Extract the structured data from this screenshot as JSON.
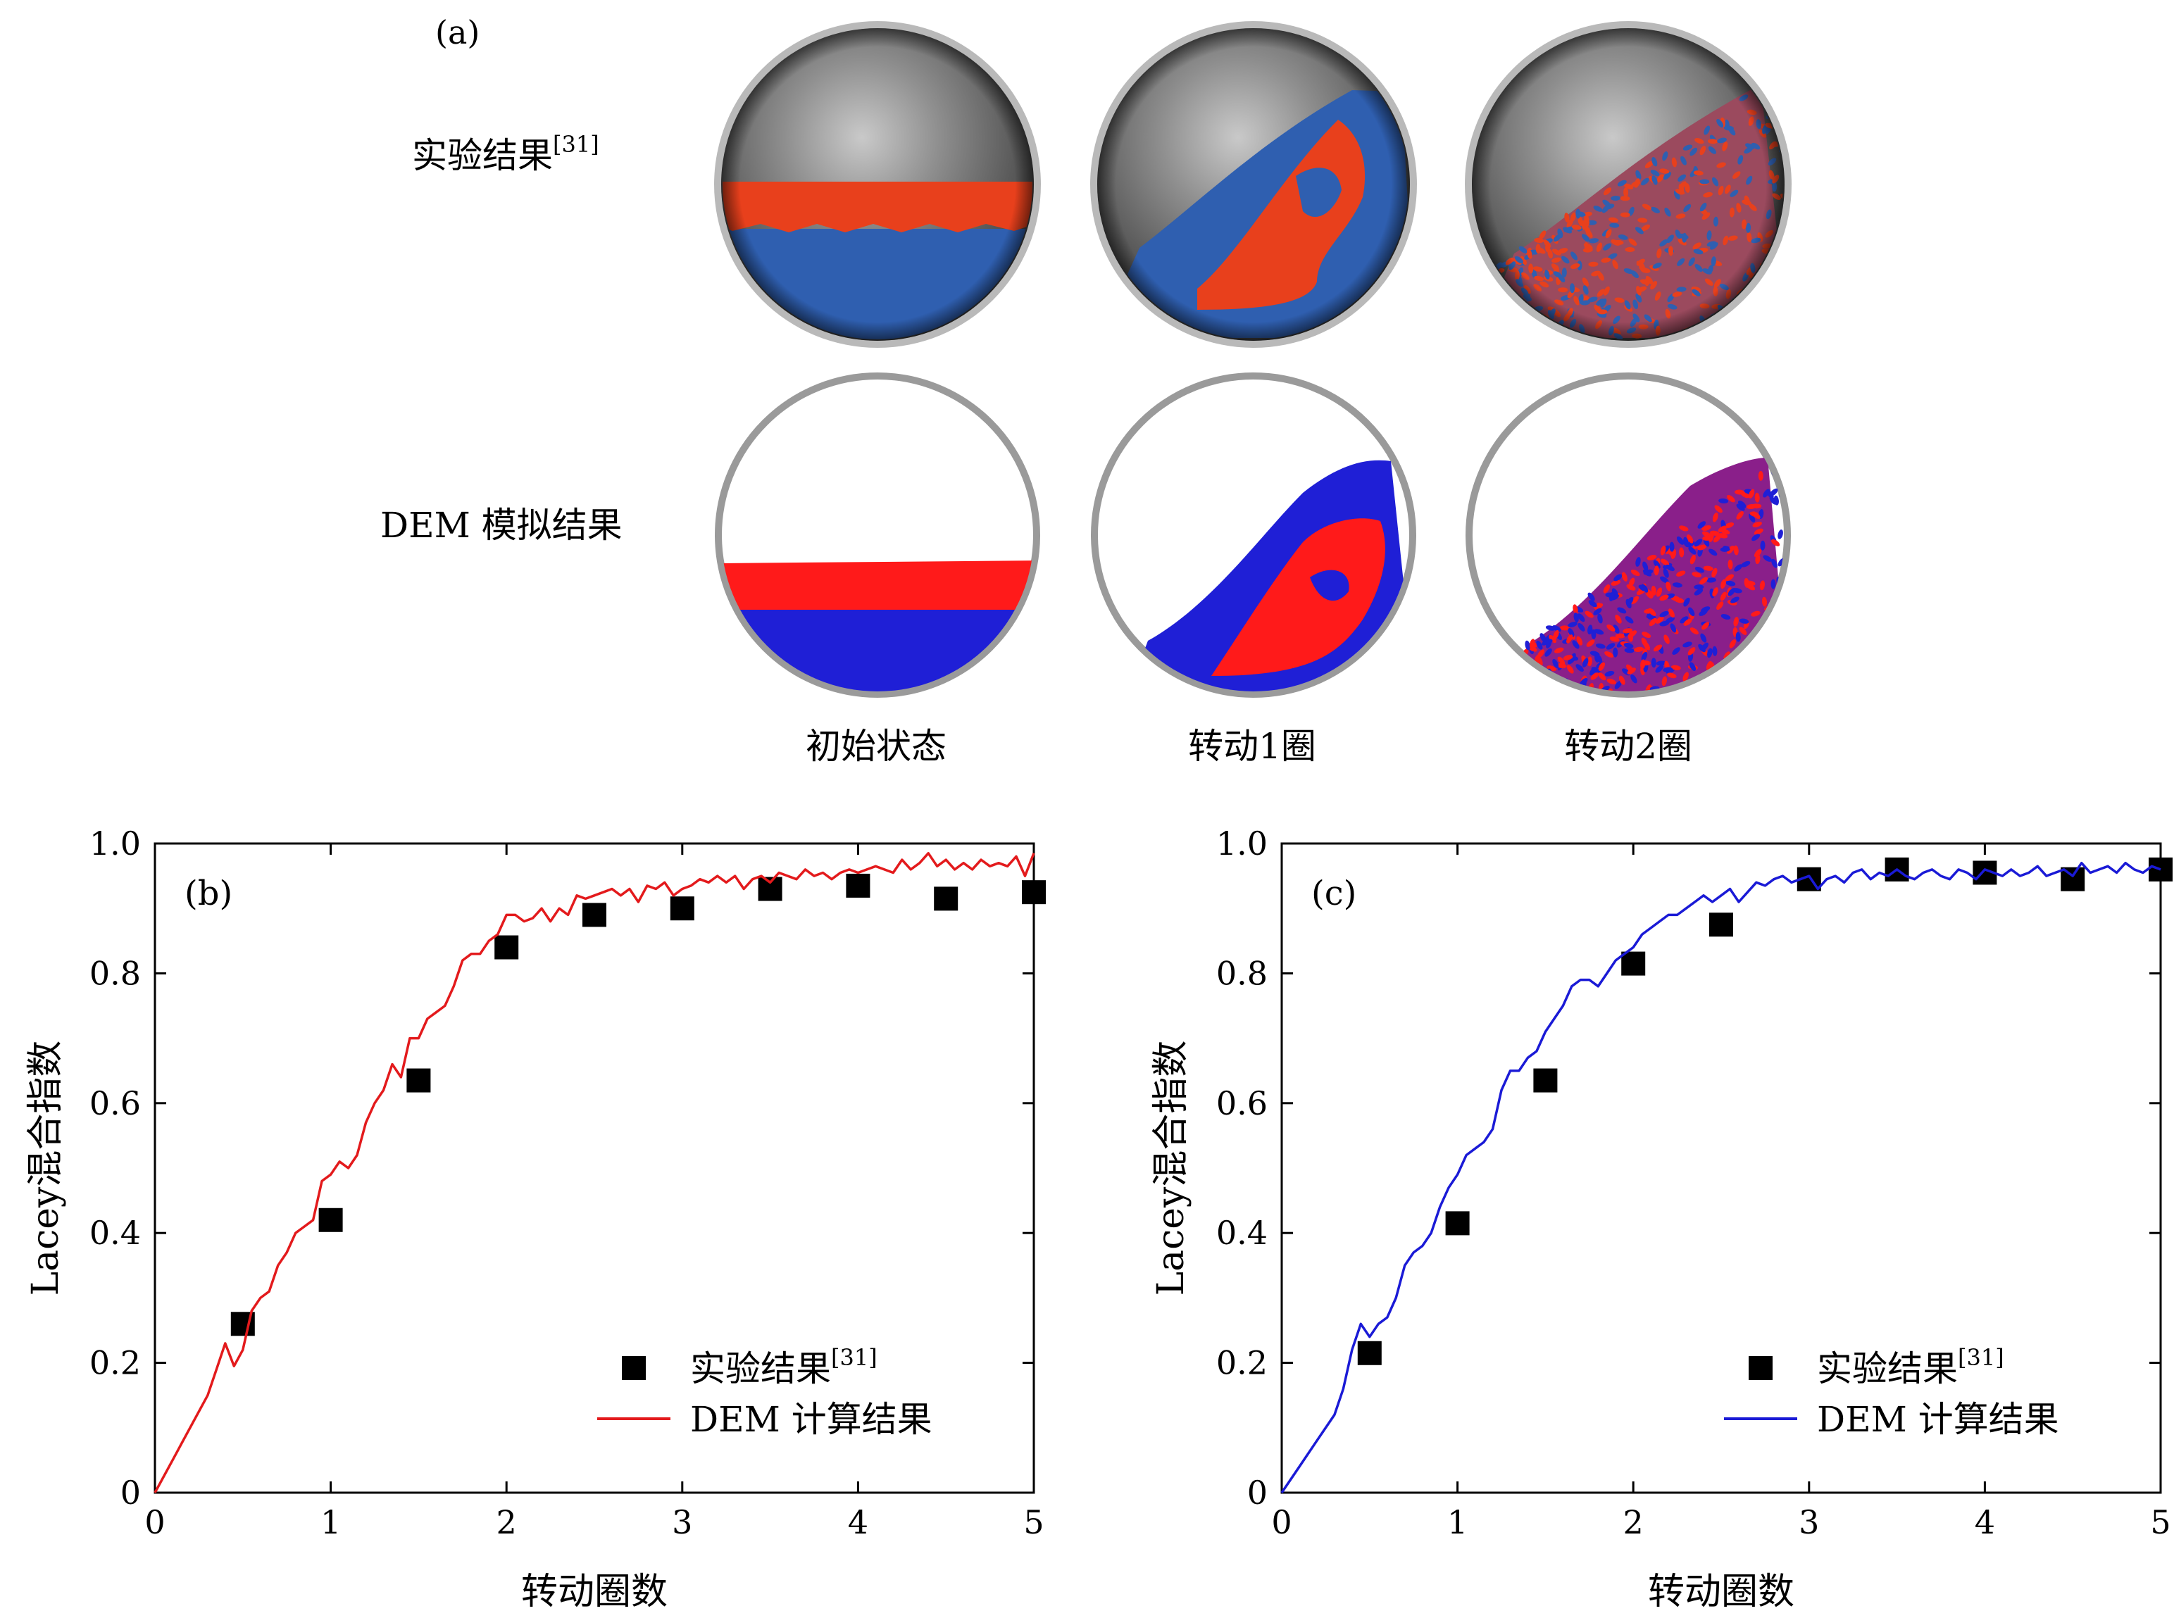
{
  "panel_a": {
    "label": "(a)",
    "row_experiment": "实验结果",
    "row_experiment_ref": "[31]",
    "row_dem": "DEM 模拟结果",
    "columns": [
      "初始状态",
      "转动1圈",
      "转动2圈"
    ],
    "colors": {
      "red": "#e8401c",
      "blue": "#2f5fb0",
      "sim_red": "#ff1a1a",
      "sim_blue": "#1f1fd6"
    }
  },
  "chart_data": [
    {
      "type": "line",
      "panel_label": "(b)",
      "xlabel": "转动圈数",
      "ylabel": "Lacey混合指数",
      "xlim": [
        0,
        5
      ],
      "ylim": [
        0,
        1.0
      ],
      "xticks": [
        "0",
        "1",
        "2",
        "3",
        "4",
        "5"
      ],
      "yticks": [
        "0",
        "0.2",
        "0.4",
        "0.6",
        "0.8",
        "1.0"
      ],
      "legend_position": "bottom-right",
      "series": [
        {
          "name": "实验结果",
          "ref": "[31]",
          "kind": "scatter",
          "marker": "square",
          "color": "#000000",
          "x": [
            0.5,
            1.0,
            1.5,
            2.0,
            2.5,
            3.0,
            3.5,
            4.0,
            4.5,
            5.0
          ],
          "y": [
            0.26,
            0.42,
            0.635,
            0.84,
            0.89,
            0.9,
            0.93,
            0.935,
            0.915,
            0.925
          ]
        },
        {
          "name": "DEM 计算结果",
          "kind": "line",
          "color": "#e31a1c",
          "x": [
            0.0,
            0.1,
            0.2,
            0.3,
            0.35,
            0.4,
            0.45,
            0.5,
            0.55,
            0.6,
            0.65,
            0.7,
            0.75,
            0.8,
            0.85,
            0.9,
            0.95,
            1.0,
            1.05,
            1.1,
            1.15,
            1.2,
            1.25,
            1.3,
            1.35,
            1.4,
            1.45,
            1.5,
            1.55,
            1.6,
            1.65,
            1.7,
            1.75,
            1.8,
            1.85,
            1.9,
            1.95,
            2.0,
            2.05,
            2.1,
            2.15,
            2.2,
            2.25,
            2.3,
            2.35,
            2.4,
            2.45,
            2.5,
            2.55,
            2.6,
            2.65,
            2.7,
            2.75,
            2.8,
            2.85,
            2.9,
            2.95,
            3.0,
            3.05,
            3.1,
            3.15,
            3.2,
            3.25,
            3.3,
            3.35,
            3.4,
            3.45,
            3.5,
            3.55,
            3.6,
            3.65,
            3.7,
            3.75,
            3.8,
            3.85,
            3.9,
            3.95,
            4.0,
            4.05,
            4.1,
            4.15,
            4.2,
            4.25,
            4.3,
            4.35,
            4.4,
            4.45,
            4.5,
            4.55,
            4.6,
            4.65,
            4.7,
            4.75,
            4.8,
            4.85,
            4.9,
            4.95,
            5.0
          ],
          "y": [
            0.0,
            0.05,
            0.1,
            0.15,
            0.19,
            0.23,
            0.195,
            0.22,
            0.28,
            0.3,
            0.31,
            0.35,
            0.37,
            0.4,
            0.41,
            0.42,
            0.48,
            0.49,
            0.51,
            0.5,
            0.52,
            0.57,
            0.6,
            0.62,
            0.66,
            0.64,
            0.7,
            0.7,
            0.73,
            0.74,
            0.75,
            0.78,
            0.82,
            0.83,
            0.83,
            0.85,
            0.86,
            0.89,
            0.89,
            0.88,
            0.885,
            0.9,
            0.88,
            0.9,
            0.89,
            0.92,
            0.915,
            0.92,
            0.925,
            0.93,
            0.92,
            0.93,
            0.91,
            0.935,
            0.93,
            0.94,
            0.92,
            0.93,
            0.935,
            0.945,
            0.94,
            0.95,
            0.94,
            0.95,
            0.93,
            0.945,
            0.95,
            0.94,
            0.955,
            0.95,
            0.945,
            0.96,
            0.95,
            0.955,
            0.945,
            0.955,
            0.96,
            0.955,
            0.96,
            0.965,
            0.96,
            0.955,
            0.975,
            0.96,
            0.97,
            0.985,
            0.965,
            0.975,
            0.96,
            0.97,
            0.96,
            0.975,
            0.965,
            0.97,
            0.965,
            0.98,
            0.95,
            0.985
          ]
        }
      ]
    },
    {
      "type": "line",
      "panel_label": "(c)",
      "xlabel": "转动圈数",
      "ylabel": "Lacey混合指数",
      "xlim": [
        0,
        5
      ],
      "ylim": [
        0,
        1.0
      ],
      "xticks": [
        "0",
        "1",
        "2",
        "3",
        "4",
        "5"
      ],
      "yticks": [
        "0",
        "0.2",
        "0.4",
        "0.6",
        "0.8",
        "1.0"
      ],
      "legend_position": "bottom-right",
      "series": [
        {
          "name": "实验结果",
          "ref": "[31]",
          "kind": "scatter",
          "marker": "square",
          "color": "#000000",
          "x": [
            0.5,
            1.0,
            1.5,
            2.0,
            2.5,
            3.0,
            3.5,
            4.0,
            4.5,
            5.0
          ],
          "y": [
            0.215,
            0.415,
            0.635,
            0.815,
            0.875,
            0.945,
            0.96,
            0.955,
            0.945,
            0.96
          ]
        },
        {
          "name": "DEM 计算结果",
          "kind": "line",
          "color": "#1a1ad6",
          "x": [
            0.0,
            0.1,
            0.2,
            0.3,
            0.35,
            0.4,
            0.45,
            0.5,
            0.55,
            0.6,
            0.65,
            0.7,
            0.75,
            0.8,
            0.85,
            0.9,
            0.95,
            1.0,
            1.05,
            1.1,
            1.15,
            1.2,
            1.25,
            1.3,
            1.35,
            1.4,
            1.45,
            1.5,
            1.55,
            1.6,
            1.65,
            1.7,
            1.75,
            1.8,
            1.85,
            1.9,
            1.95,
            2.0,
            2.05,
            2.1,
            2.15,
            2.2,
            2.25,
            2.3,
            2.35,
            2.4,
            2.45,
            2.5,
            2.55,
            2.6,
            2.65,
            2.7,
            2.75,
            2.8,
            2.85,
            2.9,
            2.95,
            3.0,
            3.05,
            3.1,
            3.15,
            3.2,
            3.25,
            3.3,
            3.35,
            3.4,
            3.45,
            3.5,
            3.55,
            3.6,
            3.65,
            3.7,
            3.75,
            3.8,
            3.85,
            3.9,
            3.95,
            4.0,
            4.05,
            4.1,
            4.15,
            4.2,
            4.25,
            4.3,
            4.35,
            4.4,
            4.45,
            4.5,
            4.55,
            4.6,
            4.65,
            4.7,
            4.75,
            4.8,
            4.85,
            4.9,
            4.95,
            5.0
          ],
          "y": [
            0.0,
            0.04,
            0.08,
            0.12,
            0.16,
            0.22,
            0.26,
            0.24,
            0.26,
            0.27,
            0.3,
            0.35,
            0.37,
            0.38,
            0.4,
            0.44,
            0.47,
            0.49,
            0.52,
            0.53,
            0.54,
            0.56,
            0.62,
            0.65,
            0.65,
            0.67,
            0.68,
            0.71,
            0.73,
            0.75,
            0.78,
            0.79,
            0.79,
            0.78,
            0.8,
            0.82,
            0.83,
            0.84,
            0.86,
            0.87,
            0.88,
            0.89,
            0.89,
            0.9,
            0.91,
            0.92,
            0.91,
            0.92,
            0.93,
            0.91,
            0.925,
            0.94,
            0.935,
            0.945,
            0.95,
            0.94,
            0.945,
            0.95,
            0.93,
            0.945,
            0.95,
            0.94,
            0.955,
            0.96,
            0.945,
            0.955,
            0.95,
            0.96,
            0.95,
            0.945,
            0.955,
            0.96,
            0.95,
            0.945,
            0.96,
            0.955,
            0.945,
            0.96,
            0.955,
            0.95,
            0.96,
            0.95,
            0.955,
            0.965,
            0.95,
            0.955,
            0.96,
            0.95,
            0.97,
            0.955,
            0.96,
            0.965,
            0.955,
            0.97,
            0.96,
            0.955,
            0.965,
            0.96
          ]
        }
      ]
    }
  ]
}
